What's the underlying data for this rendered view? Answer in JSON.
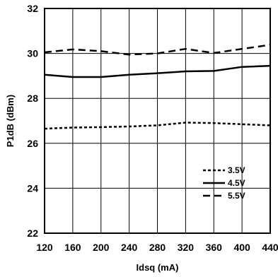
{
  "chart_data": {
    "type": "line",
    "title": "",
    "xlabel": "Idsq (mA)",
    "ylabel": "P1dB (dBm)",
    "xlim": [
      120,
      440
    ],
    "ylim": [
      22,
      32
    ],
    "x_ticks": [
      120,
      160,
      200,
      240,
      280,
      320,
      360,
      400,
      440
    ],
    "y_ticks": [
      22,
      24,
      26,
      28,
      30,
      32
    ],
    "grid": true,
    "legend_position": "bottom-right",
    "series": [
      {
        "name": "3.5V",
        "line_style": "dotted",
        "color": "#000000",
        "x": [
          120,
          160,
          200,
          240,
          280,
          320,
          360,
          400,
          440
        ],
        "y": [
          26.65,
          26.7,
          26.72,
          26.75,
          26.8,
          26.92,
          26.9,
          26.85,
          26.8
        ]
      },
      {
        "name": "4.5V",
        "line_style": "solid",
        "color": "#000000",
        "x": [
          120,
          160,
          200,
          240,
          280,
          320,
          360,
          400,
          440
        ],
        "y": [
          29.05,
          28.95,
          28.95,
          29.05,
          29.12,
          29.2,
          29.22,
          29.4,
          29.45
        ]
      },
      {
        "name": "5.5V",
        "line_style": "dashed",
        "color": "#000000",
        "x": [
          120,
          160,
          200,
          240,
          280,
          320,
          360,
          400,
          440
        ],
        "y": [
          30.05,
          30.18,
          30.1,
          29.95,
          30.0,
          30.2,
          30.02,
          30.2,
          30.38
        ]
      }
    ]
  }
}
